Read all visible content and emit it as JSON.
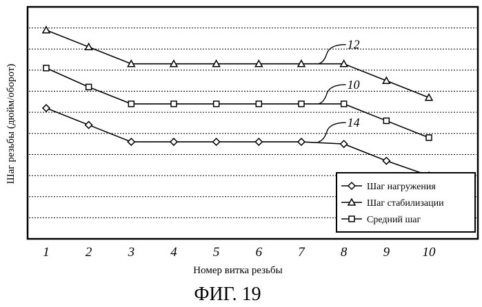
{
  "chart_data": {
    "type": "line",
    "x": [
      1,
      2,
      3,
      4,
      5,
      6,
      7,
      8,
      9,
      10
    ],
    "xlabel": "Номер витка резьбы",
    "ylabel": "Шаг резьбы (дюйм/оборот)",
    "ylim": [
      0,
      11
    ],
    "grid": "horizontal dashed",
    "legend_position": "bottom-right",
    "series": [
      {
        "name": "Шаг нагружения",
        "id_label": "14",
        "marker": "diamond",
        "values": [
          6.2,
          5.4,
          4.6,
          4.6,
          4.6,
          4.6,
          4.6,
          4.5,
          3.7,
          3.0
        ]
      },
      {
        "name": "Шаг стабилизации",
        "id_label": "12",
        "marker": "triangle",
        "values": [
          9.9,
          9.1,
          8.3,
          8.3,
          8.3,
          8.3,
          8.3,
          8.3,
          7.5,
          6.7
        ]
      },
      {
        "name": "Средний шаг",
        "id_label": "10",
        "marker": "square",
        "values": [
          8.1,
          7.2,
          6.4,
          6.4,
          6.4,
          6.4,
          6.4,
          6.4,
          5.6,
          4.8
        ]
      }
    ]
  },
  "caption": "ФИГ. 19",
  "colors": {
    "line": "#000000",
    "grid": "#000000",
    "background": "#ffffff"
  }
}
